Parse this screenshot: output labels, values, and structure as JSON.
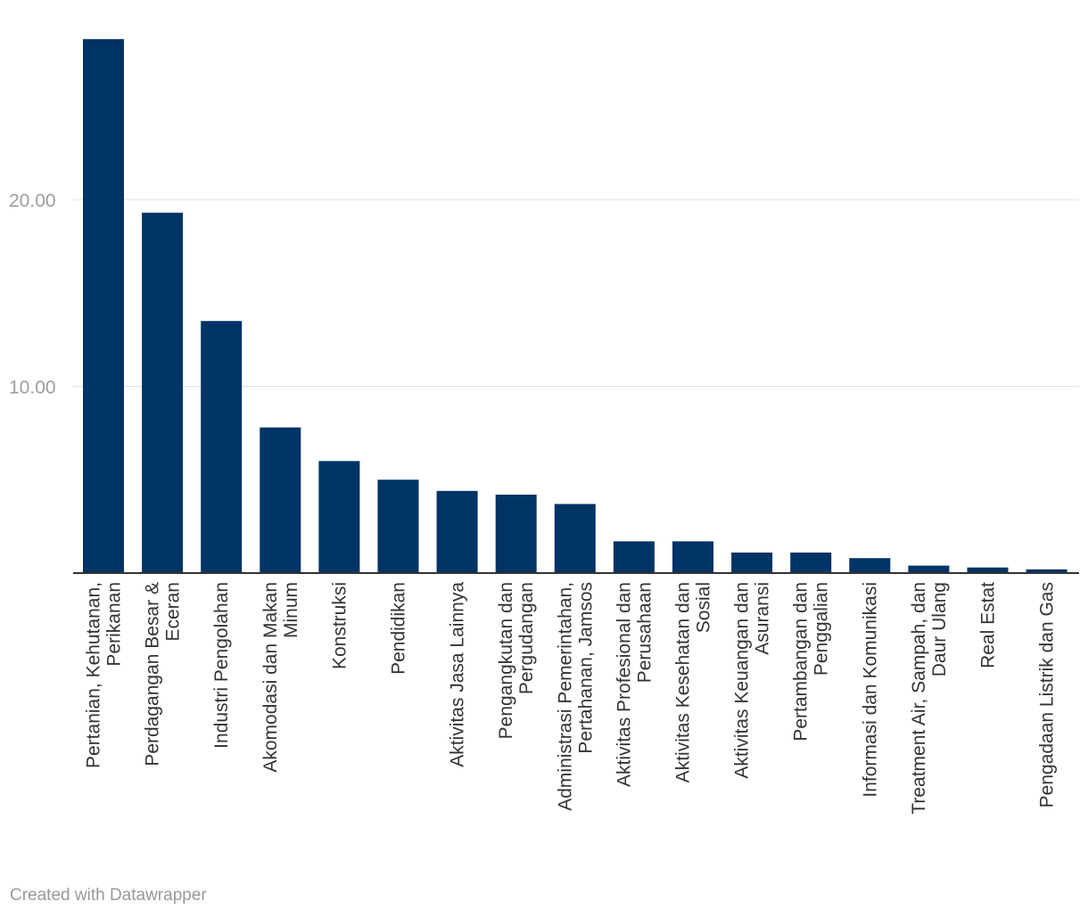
{
  "chart_data": {
    "type": "bar",
    "title": "",
    "xlabel": "",
    "ylabel": "",
    "ylim": [
      0,
      30
    ],
    "yticks": [
      {
        "value": 10,
        "label": "10.00"
      },
      {
        "value": 20,
        "label": "20.00"
      }
    ],
    "grid": true,
    "bar_color": "#003366",
    "categories": [
      [
        "Pertanian, Kehutanan,",
        "Perikanan"
      ],
      [
        "Perdagangan Besar &",
        "Eceran"
      ],
      [
        "Industri Pengolahan"
      ],
      [
        "Akomodasi dan Makan",
        "Minum"
      ],
      [
        "Konstruksi"
      ],
      [
        "Pendidikan"
      ],
      [
        "Aktivitas Jasa Lainnya"
      ],
      [
        "Pengangkutan dan",
        "Pergudangan"
      ],
      [
        "Administrasi Pemerintahan,",
        "Pertahanan, Jamsos"
      ],
      [
        "Aktivitas Profesional dan",
        "Perusahaan"
      ],
      [
        "Aktivitas Kesehatan dan",
        "Sosial"
      ],
      [
        "Aktivitas Keuangan dan",
        "Asuransi"
      ],
      [
        "Pertambangan dan",
        "Penggalian"
      ],
      [
        "Informasi dan Komunikasi"
      ],
      [
        "Treatment Air, Sampah, dan",
        "Daur Ulang"
      ],
      [
        "Real Estat"
      ],
      [
        "Pengadaan Listrik dan Gas"
      ]
    ],
    "values": [
      28.6,
      19.3,
      13.5,
      7.8,
      6.0,
      5.0,
      4.4,
      4.2,
      3.7,
      1.7,
      1.7,
      1.1,
      1.1,
      0.8,
      0.4,
      0.3,
      0.2
    ]
  },
  "footer": {
    "credit": "Created with Datawrapper"
  }
}
